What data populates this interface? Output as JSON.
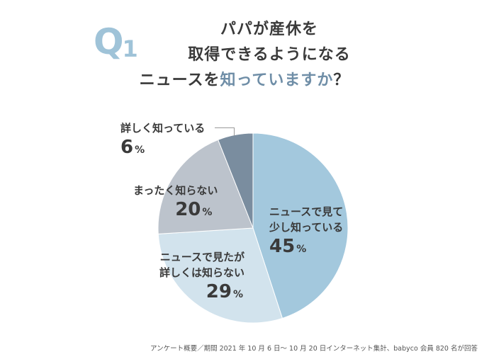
{
  "badge": {
    "letter": "Q",
    "number": "1"
  },
  "title": {
    "line1": "パパが産休を",
    "line2": "取得できるようになる",
    "line3_a": "ニュースを",
    "line3_accent": "知っていますか",
    "line3_b": "？"
  },
  "chart_data": {
    "type": "pie",
    "slices": [
      {
        "label_lines": [
          "ニュースで見て",
          "少し知っている"
        ],
        "value": 45,
        "color": "#a3c8dd"
      },
      {
        "label_lines": [
          "ニュースで見たが",
          "詳しくは知らない"
        ],
        "value": 29,
        "color": "#d2e3ed"
      },
      {
        "label_lines": [
          "まったく知らない"
        ],
        "value": 20,
        "color": "#bcc3cc"
      },
      {
        "label_lines": [
          "詳しく知っている"
        ],
        "value": 6,
        "color": "#7a8d9f"
      }
    ],
    "start": "top",
    "direction": "clockwise",
    "unit": "%"
  },
  "footnote": "アンケート概要／期間 2021 年 10 月 6 日～ 10 月 20 日インターネット集計、babyco 会員 820 名が回答"
}
